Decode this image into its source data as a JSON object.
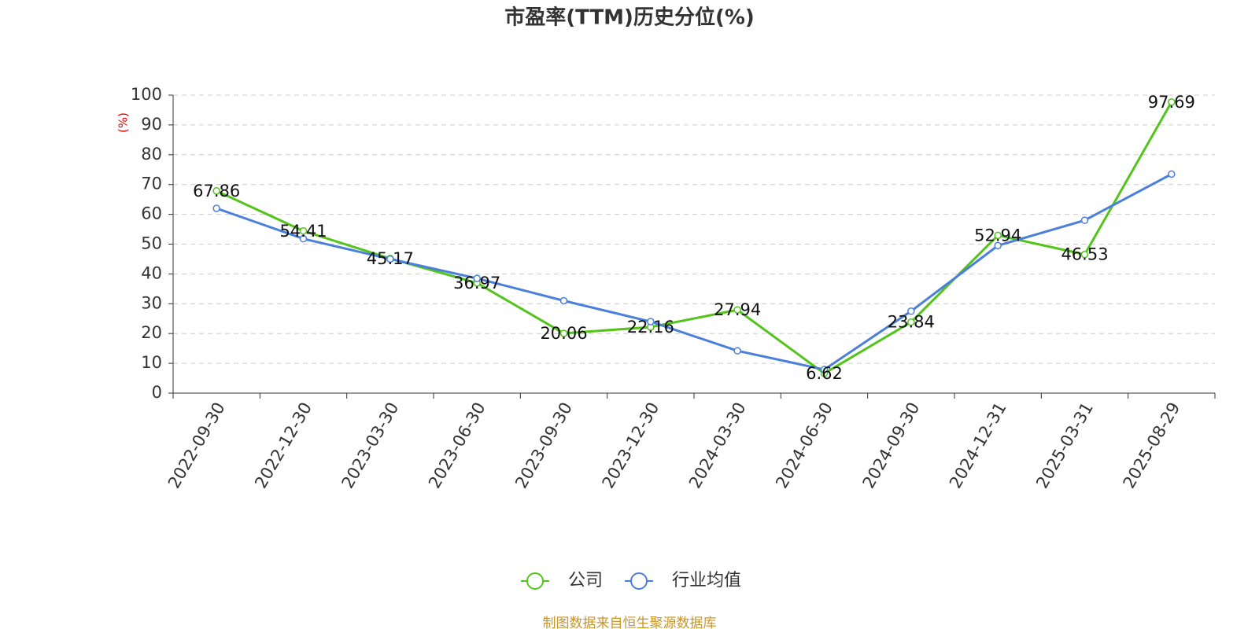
{
  "chart_data": {
    "type": "line",
    "title": "市盈率(TTM)历史分位(%)",
    "y_label": "(%)",
    "source": "制图数据来自恒生聚源数据库",
    "categories": [
      "2022-09-30",
      "2022-12-30",
      "2023-03-30",
      "2023-06-30",
      "2023-09-30",
      "2023-12-30",
      "2024-03-30",
      "2024-06-30",
      "2024-09-30",
      "2024-12-31",
      "2025-03-31",
      "2025-08-29"
    ],
    "series": [
      {
        "name": "公司",
        "color": "#52c41a",
        "show_labels": true,
        "values": [
          67.86,
          54.41,
          45.17,
          36.97,
          20.06,
          22.16,
          27.94,
          6.62,
          23.84,
          52.94,
          46.53,
          97.69
        ]
      },
      {
        "name": "行业均值",
        "color": "#4a7fdc",
        "show_labels": false,
        "values": [
          62,
          51.8,
          45,
          38.5,
          31,
          24,
          14.2,
          7.9,
          27.5,
          49.5,
          58,
          73.5
        ]
      }
    ],
    "ylim": [
      0,
      100
    ],
    "yticks": [
      0,
      10,
      20,
      30,
      40,
      50,
      60,
      70,
      80,
      90,
      100
    ],
    "grid": true
  }
}
